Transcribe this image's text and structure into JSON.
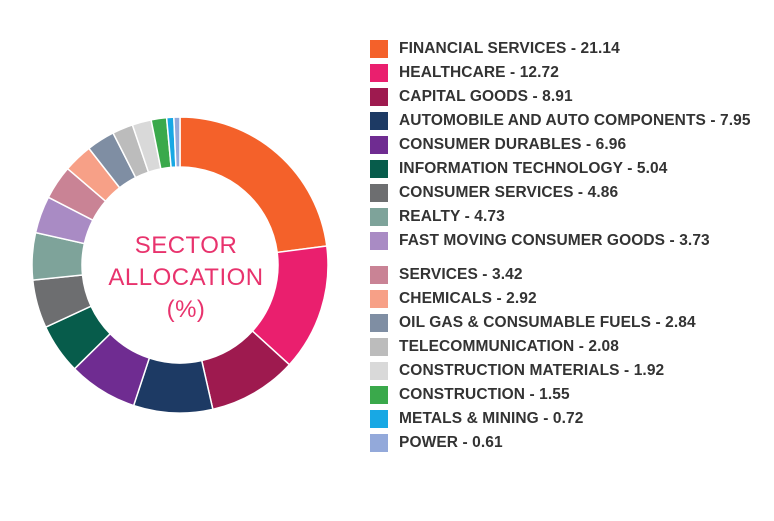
{
  "chart_data": {
    "type": "pie",
    "title": "SECTOR ALLOCATION (%)",
    "center_lines": [
      "SECTOR",
      "ALLOCATION",
      "(%)"
    ],
    "legend_position": "right",
    "slices": [
      {
        "label": "FINANCIAL SERVICES - 21.14",
        "name": "FINANCIAL SERVICES",
        "value": 21.14,
        "color": "#f4612a"
      },
      {
        "label": "HEALTHCARE - 12.72",
        "name": "HEALTHCARE",
        "value": 12.72,
        "color": "#ea1f6e"
      },
      {
        "label": "CAPITAL GOODS - 8.91",
        "name": "CAPITAL GOODS",
        "value": 8.91,
        "color": "#9e1a4f"
      },
      {
        "label": "AUTOMOBILE AND AUTO COMPONENTS  - 7.95",
        "name": "AUTOMOBILE AND AUTO COMPONENTS",
        "value": 7.95,
        "color": "#1d3a64"
      },
      {
        "label": "CONSUMER DURABLES - 6.96",
        "name": "CONSUMER DURABLES",
        "value": 6.96,
        "color": "#6f2c91"
      },
      {
        "label": "INFORMATION TECHNOLOGY - 5.04",
        "name": "INFORMATION TECHNOLOGY",
        "value": 5.04,
        "color": "#075c4b"
      },
      {
        "label": "CONSUMER SERVICES - 4.86",
        "name": "CONSUMER SERVICES",
        "value": 4.86,
        "color": "#6d6e70"
      },
      {
        "label": "REALTY - 4.73",
        "name": "REALTY",
        "value": 4.73,
        "color": "#7ea39a"
      },
      {
        "label": "FAST MOVING CONSUMER GOODS  - 3.73",
        "name": "FAST MOVING CONSUMER GOODS",
        "value": 3.73,
        "color": "#a98bc4"
      },
      {
        "label": "SERVICES - 3.42",
        "name": "SERVICES",
        "value": 3.42,
        "color": "#c98395"
      },
      {
        "label": "CHEMICALS - 2.92",
        "name": "CHEMICALS",
        "value": 2.92,
        "color": "#f7a087"
      },
      {
        "label": "OIL GAS & CONSUMABLE FUELS - 2.84",
        "name": "OIL GAS & CONSUMABLE FUELS",
        "value": 2.84,
        "color": "#7f8ea3"
      },
      {
        "label": "TELECOMMUNICATION - 2.08",
        "name": "TELECOMMUNICATION",
        "value": 2.08,
        "color": "#bcbcbc"
      },
      {
        "label": "CONSTRUCTION MATERIALS - 1.92",
        "name": "CONSTRUCTION MATERIALS",
        "value": 1.92,
        "color": "#d9d9d9"
      },
      {
        "label": "CONSTRUCTION - 1.55",
        "name": "CONSTRUCTION",
        "value": 1.55,
        "color": "#3aa94b"
      },
      {
        "label": "METALS & MINING - 0.72",
        "name": "METALS & MINING",
        "value": 0.72,
        "color": "#18a8e4"
      },
      {
        "label": "POWER - 0.61",
        "name": "POWER",
        "value": 0.61,
        "color": "#93a9da"
      }
    ]
  }
}
